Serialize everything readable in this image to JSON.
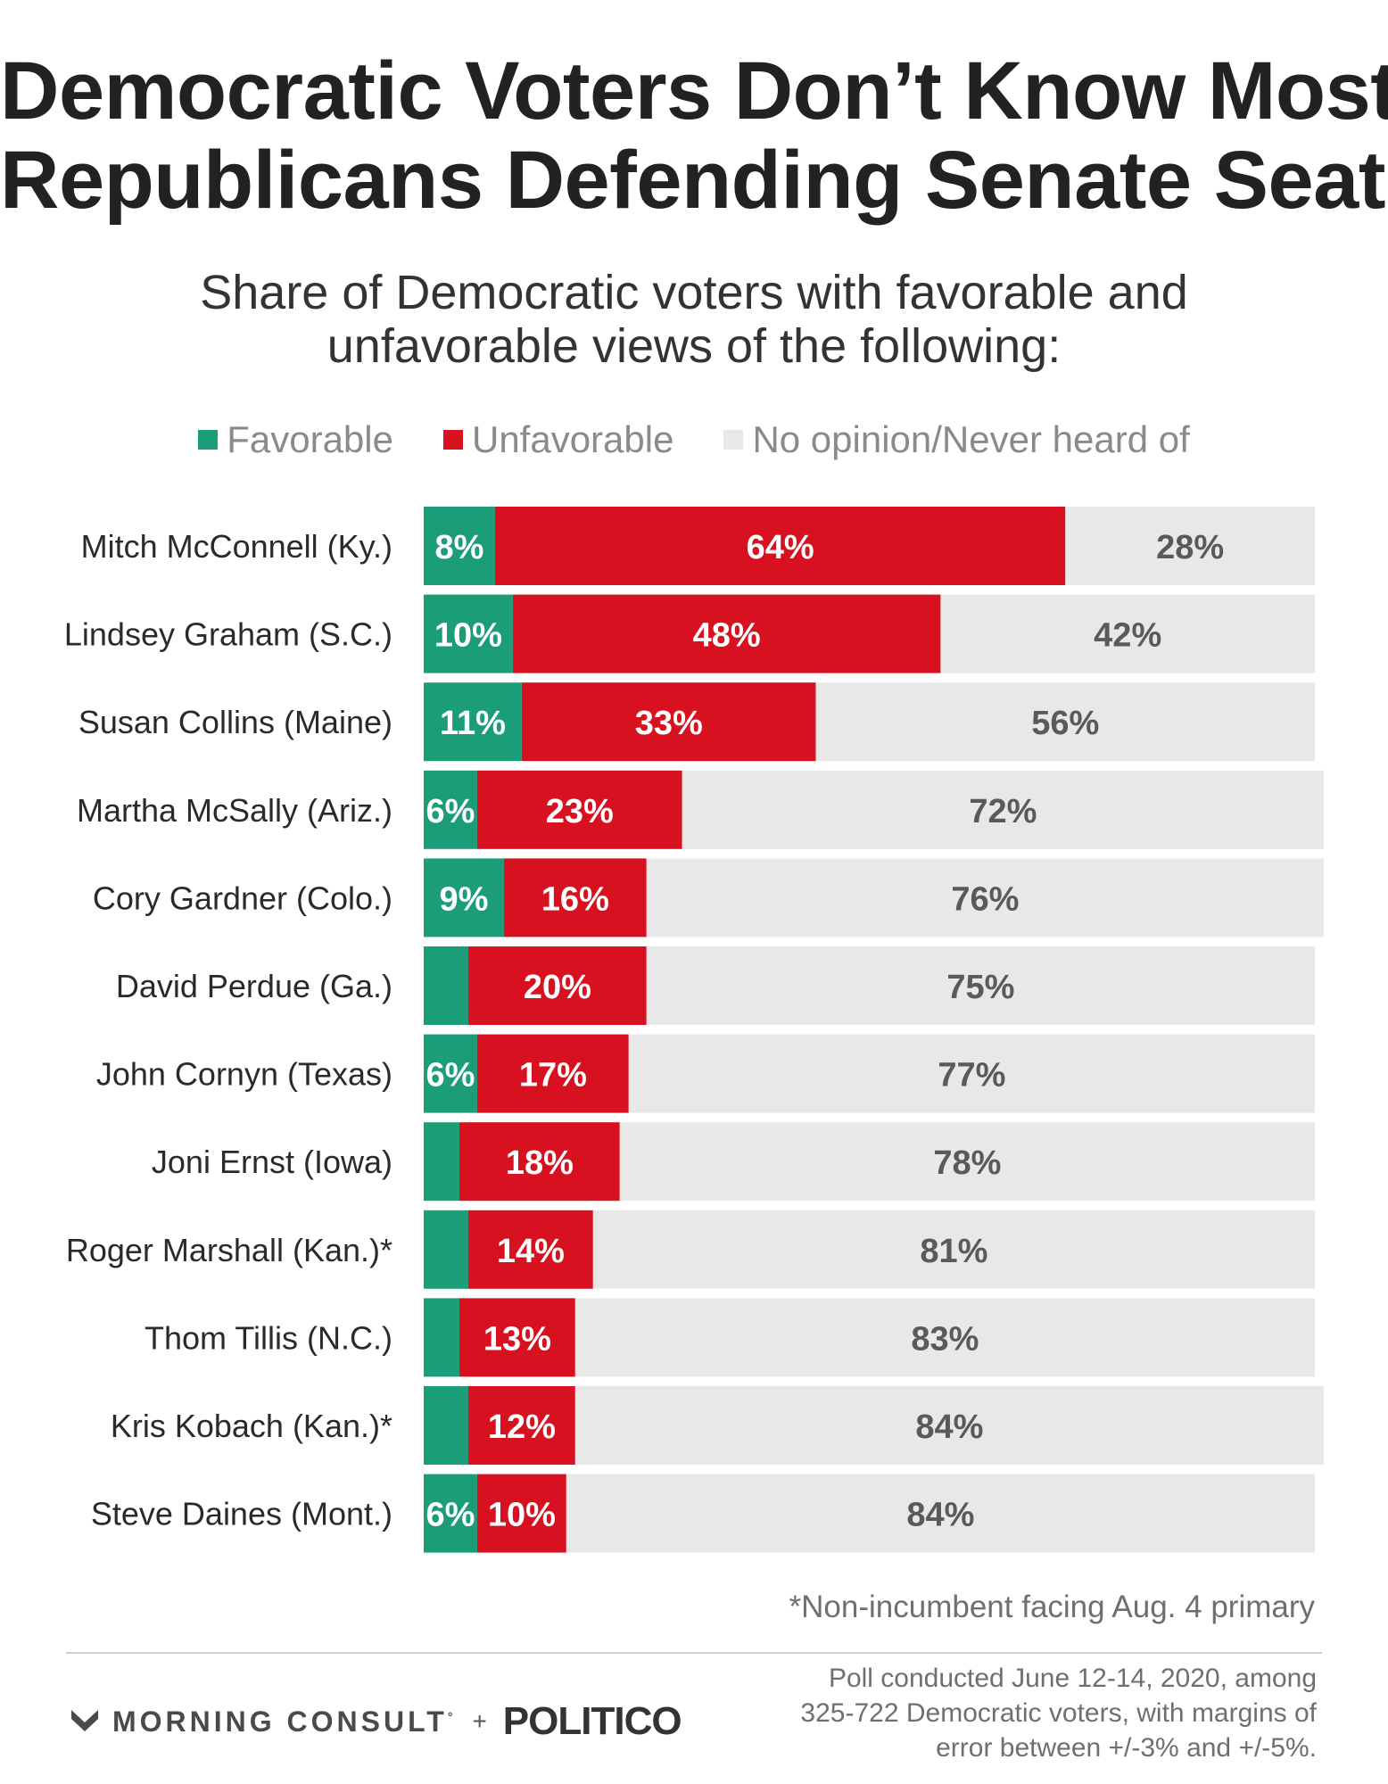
{
  "title_line1": "Democratic Voters Don’t Know Most",
  "title_line2": "Republicans Defending Senate Seats",
  "subtitle_line1": "Share of Democratic voters with favorable and",
  "subtitle_line2": "unfavorable views of the following:",
  "legend": [
    {
      "label": "Favorable",
      "color": "#1b9e77"
    },
    {
      "label": "Unfavorable",
      "color": "#d7111f"
    },
    {
      "label": "No opinion/Never heard of",
      "color": "#e8e8e8"
    }
  ],
  "footnote": "*Non-incumbent facing Aug. 4 primary",
  "brand": {
    "morning_consult": "MORNING CONSULT",
    "reg": "°",
    "plus": "+",
    "politico": "POLITICO"
  },
  "source_lines": [
    "Poll conducted June 12-14, 2020, among",
    "325-722 Democratic voters, with margins of",
    "error between +/-3% and +/-5%."
  ],
  "chart_data": {
    "type": "bar",
    "orientation": "horizontal",
    "stacked": true,
    "categories": [
      "Mitch McConnell (Ky.)",
      "Lindsey Graham (S.C.)",
      "Susan Collins (Maine)",
      "Martha McSally (Ariz.)",
      "Cory Gardner (Colo.)",
      "David Perdue (Ga.)",
      "John Cornyn (Texas)",
      "Joni Ernst (Iowa)",
      "Roger Marshall (Kan.)*",
      "Thom Tillis (N.C.)",
      "Kris Kobach (Kan.)*",
      "Steve Daines (Mont.)"
    ],
    "series": [
      {
        "name": "Favorable",
        "color": "#1b9e77",
        "label_color": "#ffffff",
        "values": [
          8,
          10,
          11,
          6,
          9,
          5,
          6,
          4,
          5,
          4,
          5,
          6
        ],
        "labels": [
          "8%",
          "10%",
          "11%",
          "6%",
          "9%",
          "",
          "6%",
          "",
          "",
          "",
          "",
          "6%"
        ]
      },
      {
        "name": "Unfavorable",
        "color": "#d7111f",
        "label_color": "#ffffff",
        "values": [
          64,
          48,
          33,
          23,
          16,
          20,
          17,
          18,
          14,
          13,
          12,
          10
        ],
        "labels": [
          "64%",
          "48%",
          "33%",
          "23%",
          "16%",
          "20%",
          "17%",
          "18%",
          "14%",
          "13%",
          "12%",
          "10%"
        ]
      },
      {
        "name": "No opinion/Never heard of",
        "color": "#e8e8e8",
        "label_color": "#5a5a5a",
        "values": [
          28,
          42,
          56,
          72,
          76,
          75,
          77,
          78,
          81,
          83,
          84,
          84
        ],
        "labels": [
          "28%",
          "42%",
          "56%",
          "72%",
          "76%",
          "75%",
          "77%",
          "78%",
          "81%",
          "83%",
          "84%",
          "84%"
        ]
      }
    ],
    "xlim": [
      0,
      100
    ]
  }
}
